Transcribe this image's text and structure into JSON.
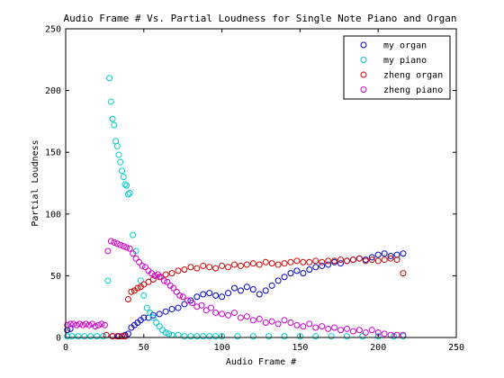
{
  "chart_data": {
    "type": "scatter",
    "title": "Audio Frame # Vs. Partial Loudness for Single Note Piano and Organ",
    "xlabel": "Audio Frame #",
    "ylabel": "Partial Loudness",
    "xlim": [
      0,
      250
    ],
    "ylim": [
      0,
      250
    ],
    "xticks": [
      0,
      50,
      100,
      150,
      200,
      250
    ],
    "yticks": [
      0,
      50,
      100,
      150,
      200,
      250
    ],
    "xtick_labels": [
      "0",
      "50",
      "100",
      "150",
      "200",
      "250"
    ],
    "ytick_labels": [
      "0",
      "50",
      "100",
      "150",
      "200",
      "250"
    ],
    "grid": false,
    "legend_position": "top-right",
    "marker": "circle-open",
    "series": [
      {
        "name": "my organ",
        "color": "#0000cc",
        "x": [
          1,
          3,
          30,
          34,
          38,
          40,
          42,
          44,
          46,
          48,
          50,
          53,
          56,
          60,
          64,
          68,
          72,
          76,
          80,
          84,
          88,
          92,
          96,
          100,
          104,
          108,
          112,
          116,
          120,
          124,
          128,
          132,
          136,
          140,
          144,
          148,
          152,
          156,
          160,
          164,
          168,
          172,
          176,
          180,
          184,
          188,
          192,
          196,
          200,
          204,
          208,
          212,
          216
        ],
        "y": [
          6,
          7,
          1,
          1,
          2,
          3,
          8,
          10,
          12,
          14,
          16,
          16,
          18,
          19,
          21,
          23,
          24,
          27,
          30,
          33,
          35,
          36,
          34,
          33,
          36,
          40,
          38,
          41,
          39,
          35,
          38,
          42,
          46,
          49,
          52,
          54,
          52,
          55,
          57,
          58,
          59,
          61,
          60,
          62,
          63,
          64,
          63,
          65,
          67,
          68,
          66,
          67,
          68
        ]
      },
      {
        "name": "my piano",
        "color": "#00cccc",
        "x": [
          1,
          4,
          8,
          12,
          16,
          20,
          24,
          27,
          28,
          29,
          30,
          31,
          32,
          33,
          34,
          35,
          36,
          37,
          38,
          39,
          40,
          41,
          43,
          45,
          48,
          50,
          52,
          54,
          56,
          58,
          60,
          62,
          64,
          66,
          68,
          72,
          76,
          80,
          84,
          88,
          92,
          96,
          100,
          110,
          120,
          130,
          140,
          150,
          160,
          170,
          180,
          190,
          200,
          210,
          216
        ],
        "y": [
          1,
          1,
          1,
          1,
          1,
          1,
          1,
          46,
          210,
          191,
          177,
          172,
          159,
          155,
          148,
          142,
          135,
          130,
          124,
          123,
          116,
          117,
          83,
          70,
          46,
          34,
          24,
          20,
          16,
          12,
          9,
          6,
          4,
          3,
          2,
          2,
          1,
          1,
          1,
          1,
          1,
          1,
          1,
          1,
          1,
          1,
          1,
          1,
          1,
          1,
          1,
          1,
          1,
          1,
          1
        ]
      },
      {
        "name": "zheng organ",
        "color": "#cc0000",
        "x": [
          26,
          30,
          33,
          36,
          38,
          40,
          42,
          44,
          46,
          48,
          50,
          53,
          56,
          60,
          64,
          68,
          72,
          76,
          80,
          84,
          88,
          92,
          96,
          100,
          104,
          108,
          112,
          116,
          120,
          124,
          128,
          132,
          136,
          140,
          144,
          148,
          152,
          156,
          160,
          164,
          168,
          172,
          176,
          180,
          184,
          188,
          192,
          196,
          200,
          204,
          208,
          212,
          216
        ],
        "y": [
          2,
          1,
          1,
          1,
          1,
          31,
          37,
          38,
          40,
          41,
          43,
          45,
          47,
          49,
          51,
          52,
          54,
          55,
          57,
          56,
          58,
          57,
          56,
          58,
          57,
          59,
          58,
          59,
          60,
          59,
          61,
          60,
          59,
          60,
          61,
          62,
          61,
          61,
          62,
          61,
          62,
          62,
          63,
          62,
          63,
          64,
          62,
          63,
          62,
          63,
          64,
          63,
          52
        ]
      },
      {
        "name": "zheng piano",
        "color": "#cc00cc",
        "x": [
          1,
          3,
          5,
          7,
          9,
          11,
          13,
          15,
          17,
          19,
          21,
          23,
          25,
          27,
          29,
          31,
          33,
          35,
          37,
          39,
          41,
          43,
          45,
          47,
          49,
          51,
          53,
          55,
          57,
          59,
          61,
          63,
          65,
          67,
          69,
          71,
          73,
          75,
          78,
          81,
          84,
          87,
          90,
          93,
          96,
          100,
          104,
          108,
          112,
          116,
          120,
          124,
          128,
          132,
          136,
          140,
          144,
          148,
          152,
          156,
          160,
          164,
          168,
          172,
          176,
          180,
          184,
          188,
          192,
          196,
          200,
          204,
          208,
          212,
          216
        ],
        "y": [
          10,
          11,
          11,
          10,
          11,
          10,
          11,
          10,
          11,
          9,
          10,
          11,
          10,
          70,
          78,
          77,
          76,
          75,
          74,
          73,
          72,
          68,
          64,
          61,
          58,
          57,
          54,
          52,
          50,
          51,
          49,
          46,
          45,
          42,
          40,
          37,
          34,
          33,
          30,
          28,
          25,
          26,
          22,
          24,
          20,
          19,
          18,
          20,
          16,
          17,
          14,
          15,
          12,
          13,
          11,
          14,
          12,
          10,
          9,
          11,
          8,
          9,
          7,
          8,
          6,
          7,
          5,
          6,
          4,
          6,
          4,
          3,
          2,
          2,
          2
        ]
      }
    ]
  }
}
